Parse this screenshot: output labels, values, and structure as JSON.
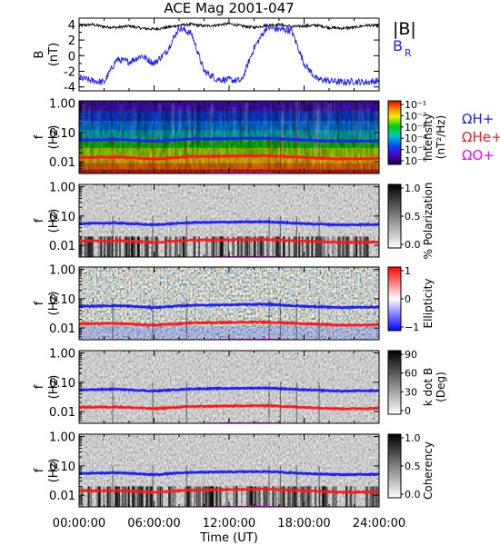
{
  "title": "ACE Mag 2001-047",
  "xlabel": "Time (UT)",
  "xticks": [
    "00:00:00",
    "06:00:00",
    "12:00:00",
    "18:00:00",
    "24:00:00"
  ],
  "xlim": [
    0,
    24
  ],
  "colors": {
    "blue": "#1f1fff",
    "red": "#ff1a1a",
    "magenta": "#ff00ff",
    "black": "#000000"
  },
  "chart_data": [
    {
      "type": "line",
      "title": "ACE Mag 2001-047",
      "ylabel": "B",
      "yunit": "(nT)",
      "ylim": [
        -4.5,
        4.8
      ],
      "yticks": [
        "4",
        "2",
        "0",
        "-2",
        "-4"
      ],
      "ytick_values": [
        4,
        2,
        0,
        -2,
        -4
      ],
      "legend": [
        "|B|",
        "B"
      ],
      "legend_subscript": "R",
      "series": [
        {
          "name": "|B|",
          "color": "#000000",
          "x": [
            0,
            1,
            2,
            3,
            4,
            5,
            6,
            7,
            8,
            9,
            10,
            11,
            12,
            13,
            14,
            15,
            16,
            17,
            18,
            19,
            20,
            21,
            22,
            23,
            24
          ],
          "values": [
            3.8,
            4.0,
            3.7,
            3.6,
            3.8,
            3.5,
            3.4,
            3.6,
            3.9,
            4.0,
            3.8,
            3.9,
            4.1,
            3.8,
            3.6,
            3.9,
            4.0,
            3.7,
            3.8,
            3.9,
            3.6,
            3.5,
            3.6,
            3.9,
            3.8
          ]
        },
        {
          "name": "B",
          "color": "#1f1fff",
          "x": [
            0,
            1,
            2,
            3,
            4,
            5,
            6,
            7,
            8,
            9,
            10,
            11,
            12,
            13,
            14,
            15,
            16,
            17,
            18,
            19,
            20,
            21,
            22,
            23,
            24
          ],
          "values": [
            -2.8,
            -3.2,
            -3.4,
            -0.5,
            -0.8,
            0.0,
            -1.0,
            0.5,
            3.6,
            2.8,
            -2.0,
            -3.0,
            -3.1,
            -3.2,
            1.0,
            3.6,
            3.4,
            3.2,
            -1.0,
            -3.0,
            -3.2,
            -3.4,
            -3.3,
            -3.4,
            -3.2
          ]
        }
      ]
    },
    {
      "type": "heatmap",
      "panel": "intensity",
      "ylabel": "f",
      "yunit": "(Hz)",
      "ylim": [
        0.004,
        1.2
      ],
      "yscale": "log",
      "yticks": [
        "1.00",
        "0.10",
        "0.01"
      ],
      "ytick_values": [
        1,
        0.1,
        0.01
      ],
      "colorbar_label": "Intensity",
      "colorbar_unit": "(nT²/Hz)",
      "colorbar_ticks": [
        "10⁻¹",
        "10⁻²",
        "10⁻³",
        "10⁻⁴",
        "10⁻⁵",
        "10⁻⁶"
      ],
      "colorbar_scale": "rainbow",
      "legend": [
        "ΩH+",
        "ΩHe+",
        "ΩO+"
      ],
      "overlay_lines": [
        {
          "name": "ΩH+",
          "color": "#1f1fff",
          "x": [
            0,
            3,
            6,
            9,
            12,
            15,
            18,
            21,
            24
          ],
          "values": [
            0.055,
            0.058,
            0.05,
            0.06,
            0.062,
            0.064,
            0.055,
            0.05,
            0.052
          ]
        },
        {
          "name": "ΩHe+",
          "color": "#ff1a1a",
          "x": [
            0,
            3,
            6,
            9,
            12,
            15,
            18,
            21,
            24
          ],
          "values": [
            0.014,
            0.0145,
            0.0125,
            0.015,
            0.0155,
            0.016,
            0.014,
            0.0125,
            0.013
          ]
        },
        {
          "name": "ΩO+",
          "color": "#ff00ff",
          "x": [
            0,
            3,
            6,
            9,
            12,
            15,
            18,
            21,
            24
          ],
          "values": [
            0.0035,
            0.0036,
            0.0032,
            0.0037,
            0.0039,
            0.004,
            0.0035,
            0.0031,
            0.0033
          ]
        }
      ]
    },
    {
      "type": "heatmap",
      "panel": "polarization",
      "ylabel": "f",
      "yunit": "(Hz)",
      "ylim": [
        0.004,
        1.2
      ],
      "yscale": "log",
      "yticks": [
        "1.00",
        "0.10",
        "0.01"
      ],
      "ytick_values": [
        1,
        0.1,
        0.01
      ],
      "colorbar_label": "% Polarization",
      "colorbar_ticks": [
        "1.0",
        "0.5",
        "0.0"
      ],
      "colorbar_scale": "gray"
    },
    {
      "type": "heatmap",
      "panel": "ellipticity",
      "ylabel": "f",
      "yunit": "(Hz)",
      "ylim": [
        0.004,
        1.2
      ],
      "yscale": "log",
      "yticks": [
        "1.00",
        "0.10",
        "0.01"
      ],
      "ytick_values": [
        1,
        0.1,
        0.01
      ],
      "colorbar_label": "Ellipticity",
      "colorbar_ticks": [
        "1",
        "0",
        "−1"
      ],
      "colorbar_scale": "bwr"
    },
    {
      "type": "heatmap",
      "panel": "kdotb",
      "ylabel": "f",
      "yunit": "(Hz)",
      "ylim": [
        0.004,
        1.2
      ],
      "yscale": "log",
      "yticks": [
        "1.00",
        "0.10",
        "0.01"
      ],
      "ytick_values": [
        1,
        0.1,
        0.01
      ],
      "colorbar_label": "k dot B",
      "colorbar_unit": "(Deg)",
      "colorbar_ticks": [
        "90",
        "60",
        "30",
        "0"
      ],
      "colorbar_scale": "gray"
    },
    {
      "type": "heatmap",
      "panel": "coherency",
      "ylabel": "f",
      "yunit": "(Hz)",
      "ylim": [
        0.004,
        1.2
      ],
      "yscale": "log",
      "yticks": [
        "1.00",
        "0.10",
        "0.01"
      ],
      "ytick_values": [
        1,
        0.1,
        0.01
      ],
      "colorbar_label": "Coherency",
      "colorbar_ticks": [
        "1.0",
        "0.5",
        "0.0"
      ],
      "colorbar_scale": "gray"
    }
  ]
}
